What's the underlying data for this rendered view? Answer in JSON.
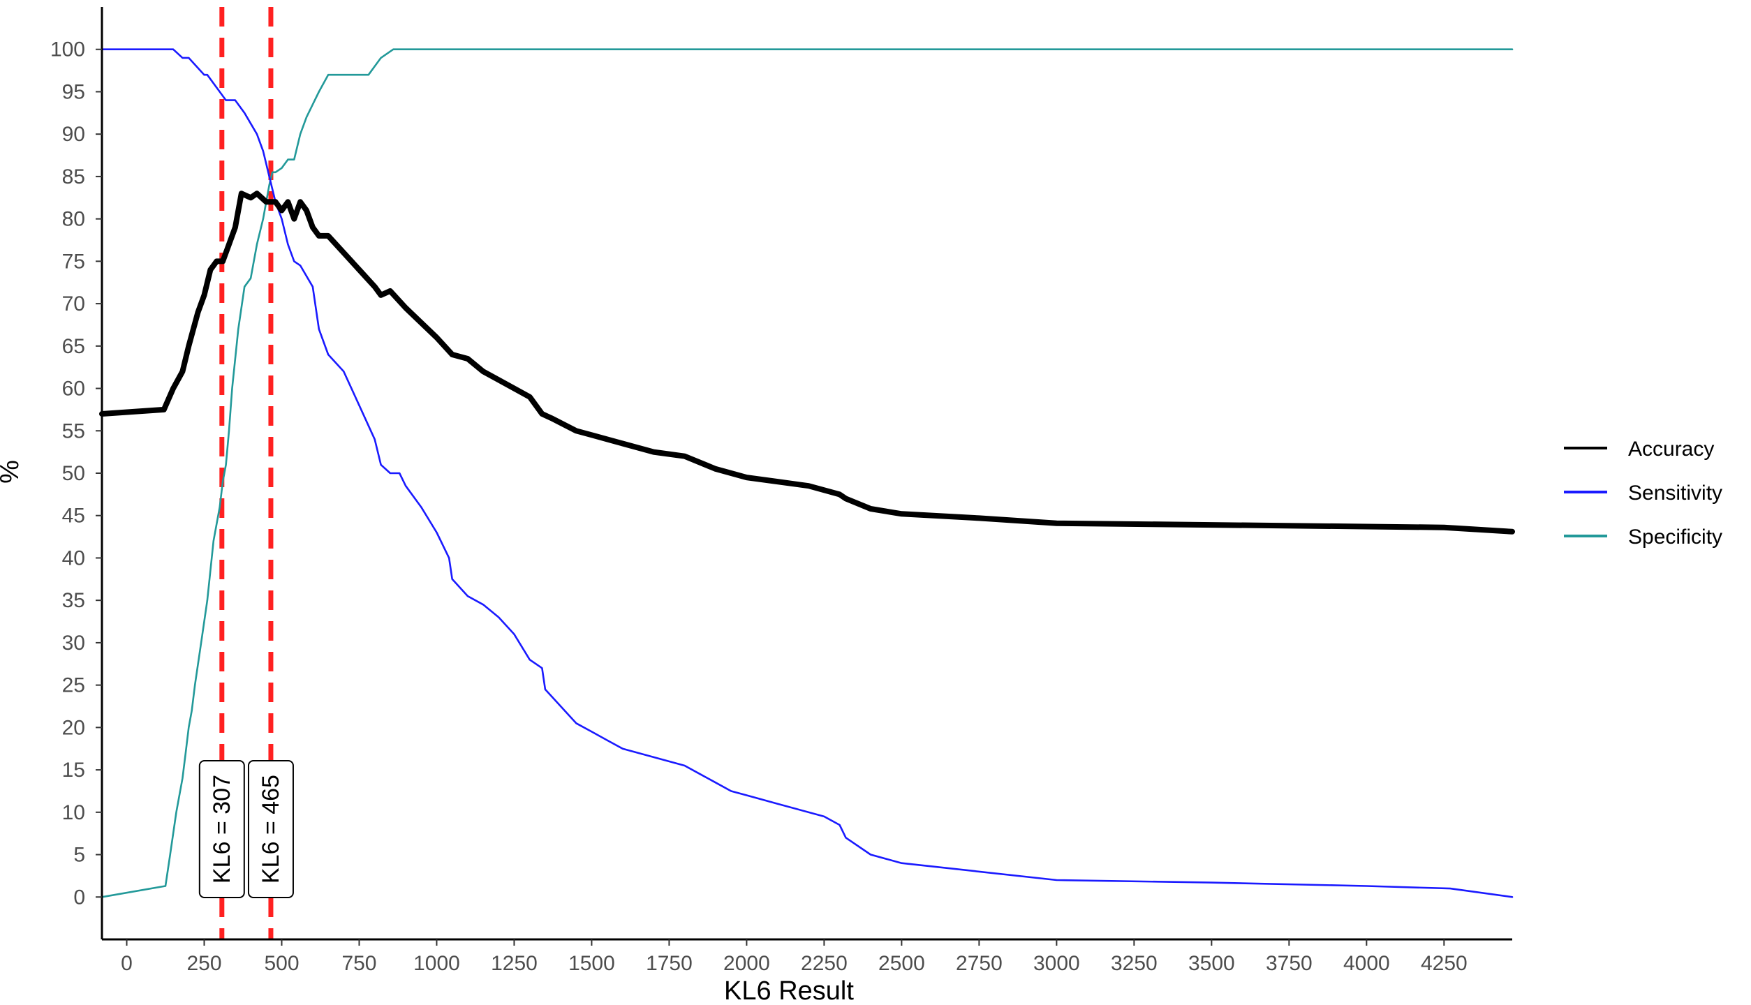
{
  "chart_data": {
    "type": "line",
    "xlabel": "KL6 Result",
    "ylabel": "%",
    "xlim": [
      -80,
      4470
    ],
    "ylim": [
      -5,
      105
    ],
    "x_ticks": [
      0,
      250,
      500,
      750,
      1000,
      1250,
      1500,
      1750,
      2000,
      2250,
      2500,
      2750,
      3000,
      3250,
      3500,
      3750,
      4000,
      4250
    ],
    "y_ticks": [
      0,
      5,
      10,
      15,
      20,
      25,
      30,
      35,
      40,
      45,
      50,
      55,
      60,
      65,
      70,
      75,
      80,
      85,
      90,
      95,
      100
    ],
    "grid": false,
    "legend_position": "right",
    "colors": {
      "Accuracy": "#000000",
      "Sensitivity": "#1a1aff",
      "Specificity": "#229999",
      "cutoff": "#ff2020"
    },
    "series": [
      {
        "name": "Accuracy",
        "x": [
          -80,
          120,
          150,
          180,
          200,
          230,
          250,
          270,
          290,
          310,
          330,
          350,
          370,
          400,
          420,
          450,
          480,
          500,
          520,
          540,
          560,
          580,
          600,
          620,
          650,
          700,
          750,
          800,
          820,
          850,
          900,
          1000,
          1050,
          1100,
          1150,
          1200,
          1300,
          1340,
          1370,
          1450,
          1500,
          1600,
          1700,
          1800,
          1900,
          2000,
          2100,
          2200,
          2300,
          2320,
          2400,
          2500,
          2750,
          3000,
          3500,
          4000,
          4250,
          4470
        ],
        "values": [
          57,
          57.5,
          60,
          62,
          65,
          69,
          71,
          74,
          75,
          75,
          77,
          79,
          83,
          82.5,
          83,
          82,
          82,
          81,
          82,
          80,
          82,
          81,
          79,
          78,
          78,
          76,
          74,
          72,
          71,
          71.5,
          69.5,
          66,
          64,
          63.5,
          62,
          61,
          59,
          57,
          56.5,
          55,
          54.5,
          53.5,
          52.5,
          52,
          50.5,
          49.5,
          49,
          48.5,
          47.5,
          47,
          45.8,
          45.2,
          44.7,
          44.1,
          43.9,
          43.7,
          43.6,
          43.1
        ]
      },
      {
        "name": "Sensitivity",
        "x": [
          -80,
          150,
          180,
          200,
          250,
          260,
          300,
          320,
          350,
          380,
          420,
          440,
          460,
          480,
          500,
          520,
          540,
          560,
          600,
          620,
          650,
          700,
          750,
          800,
          820,
          850,
          880,
          900,
          950,
          1000,
          1040,
          1050,
          1100,
          1150,
          1200,
          1250,
          1300,
          1340,
          1350,
          1400,
          1450,
          1500,
          1550,
          1600,
          1700,
          1800,
          1850,
          1900,
          1950,
          2000,
          2100,
          2250,
          2300,
          2320,
          2400,
          2500,
          3000,
          3500,
          4000,
          4270,
          4470
        ],
        "values": [
          100,
          100,
          99,
          99,
          97,
          97,
          95,
          94,
          94,
          92.5,
          90,
          88,
          85,
          82,
          80,
          77,
          75,
          74.5,
          72,
          67,
          64,
          62,
          58,
          54,
          51,
          50,
          50,
          48.5,
          46,
          43,
          40,
          37.5,
          35.5,
          34.5,
          33,
          31,
          28,
          27,
          24.5,
          22.5,
          20.5,
          19.5,
          18.5,
          17.5,
          16.5,
          15.5,
          14.5,
          13.5,
          12.5,
          12,
          11,
          9.5,
          8.5,
          7,
          5,
          4,
          2,
          1.7,
          1.3,
          1,
          0
        ]
      },
      {
        "name": "Specificity",
        "x": [
          -80,
          125,
          140,
          160,
          180,
          190,
          200,
          210,
          220,
          240,
          260,
          280,
          300,
          310,
          320,
          330,
          340,
          360,
          380,
          400,
          420,
          440,
          460,
          470,
          480,
          500,
          520,
          540,
          560,
          580,
          600,
          620,
          650,
          700,
          780,
          800,
          820,
          860,
          4470
        ],
        "values": [
          0,
          1.3,
          5,
          10,
          14,
          17,
          20,
          22,
          25,
          30,
          35,
          42,
          46,
          49,
          51,
          55,
          60,
          67,
          72,
          73,
          77,
          80,
          84,
          85.5,
          85.5,
          86,
          87,
          87,
          90,
          92,
          93.5,
          95,
          97,
          97,
          97,
          98,
          99,
          100,
          100
        ]
      }
    ],
    "annotations": [
      {
        "text": "KL6 = 307",
        "x": 307
      },
      {
        "text": "KL6 = 465",
        "x": 465
      }
    ]
  }
}
